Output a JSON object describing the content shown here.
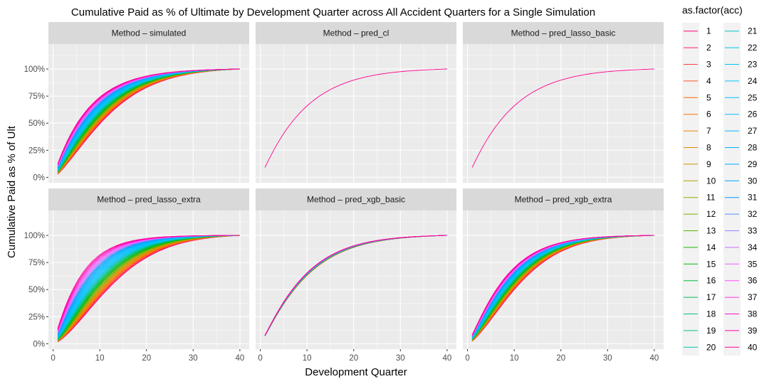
{
  "chart_data": {
    "type": "line",
    "title": "Cumulative Paid as % of Ultimate by Development Quarter across All Accident Quarters for a Single Simulation",
    "xlabel": "Development Quarter",
    "ylabel": "Cumulative Paid as % of Ult",
    "x_range": [
      1,
      40
    ],
    "x_ticks": [
      "0",
      "10",
      "20",
      "30",
      "40"
    ],
    "y_range": [
      0,
      1.2
    ],
    "y_ticks": [
      "0%",
      "25%",
      "50%",
      "75%",
      "100%"
    ],
    "grid": true,
    "facet_by": "Method",
    "legend": {
      "title": "as.factor(acc)",
      "placement": "right",
      "entries": [
        "1",
        "2",
        "3",
        "4",
        "5",
        "6",
        "7",
        "8",
        "9",
        "10",
        "11",
        "12",
        "13",
        "14",
        "15",
        "16",
        "17",
        "18",
        "19",
        "20",
        "21",
        "22",
        "23",
        "24",
        "25",
        "26",
        "27",
        "28",
        "29",
        "30",
        "31",
        "32",
        "33",
        "34",
        "35",
        "36",
        "37",
        "38",
        "39",
        "40"
      ]
    },
    "panels": [
      {
        "label": "Method – simulated",
        "series_count": 40,
        "typical_curves": {
          "acc_1": {
            "x": [
              1,
              10,
              20,
              30,
              40
            ],
            "y": [
              0.01,
              0.45,
              0.85,
              0.97,
              1.0
            ]
          },
          "acc_40": {
            "x": [
              1,
              10,
              20,
              30,
              40
            ],
            "y": [
              0.05,
              0.74,
              0.97,
              1.0,
              1.0
            ]
          }
        }
      },
      {
        "label": "Method – pred_cl",
        "series_count": 1,
        "typical_curves": {
          "acc_40": {
            "x": [
              1,
              5,
              10,
              15,
              20,
              25,
              30,
              35,
              40
            ],
            "y": [
              0.03,
              0.37,
              0.62,
              0.79,
              0.89,
              0.94,
              0.97,
              0.99,
              1.0
            ]
          }
        }
      },
      {
        "label": "Method – pred_lasso_basic",
        "series_count": 1,
        "typical_curves": {
          "acc_40": {
            "x": [
              1,
              5,
              10,
              15,
              20,
              25,
              30,
              35,
              40
            ],
            "y": [
              0.03,
              0.37,
              0.62,
              0.79,
              0.89,
              0.94,
              0.97,
              0.99,
              1.0
            ]
          }
        }
      },
      {
        "label": "Method – pred_lasso_extra",
        "series_count": 40,
        "typical_curves": {
          "acc_1": {
            "x": [
              1,
              10,
              20,
              30,
              40
            ],
            "y": [
              0.01,
              0.4,
              0.82,
              0.97,
              1.0
            ]
          },
          "acc_40": {
            "x": [
              1,
              10,
              20,
              30,
              40
            ],
            "y": [
              0.07,
              0.88,
              0.99,
              1.0,
              1.0
            ]
          }
        }
      },
      {
        "label": "Method – pred_xgb_basic",
        "series_count": 40,
        "typical_curves": {
          "acc_1": {
            "x": [
              1,
              10,
              20,
              30,
              40
            ],
            "y": [
              0.03,
              0.52,
              0.87,
              0.96,
              1.0
            ]
          },
          "acc_40": {
            "x": [
              1,
              10,
              20,
              30,
              40
            ],
            "y": [
              0.03,
              0.54,
              0.88,
              0.97,
              1.0
            ]
          }
        }
      },
      {
        "label": "Method – pred_xgb_extra",
        "series_count": 40,
        "typical_curves": {
          "acc_1": {
            "x": [
              1,
              10,
              20,
              30,
              40
            ],
            "y": [
              0.02,
              0.43,
              0.85,
              0.96,
              1.0
            ]
          },
          "acc_40": {
            "x": [
              1,
              10,
              20,
              30,
              40
            ],
            "y": [
              0.05,
              0.7,
              0.95,
              0.99,
              1.0
            ]
          }
        }
      }
    ]
  }
}
